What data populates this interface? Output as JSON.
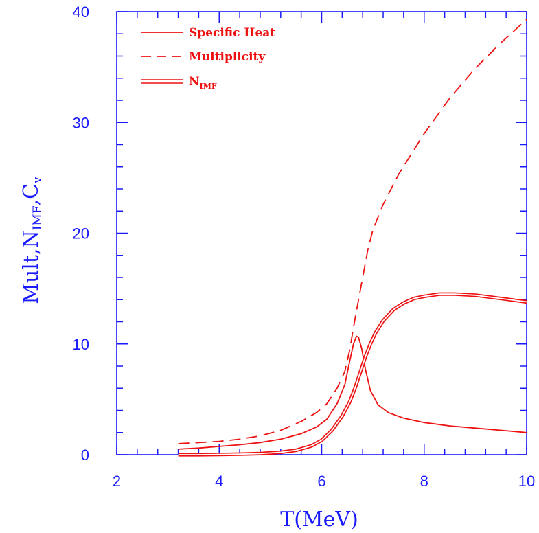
{
  "chart_data": {
    "type": "line",
    "title": "",
    "xlabel": "T(MeV)",
    "ylabel": {
      "base": "Mult,N",
      "sub1": "IMF",
      "mid": ",C",
      "sub2": "v"
    },
    "xlim": [
      2,
      10
    ],
    "ylim": [
      0,
      40
    ],
    "x_ticks": [
      2,
      4,
      6,
      8,
      10
    ],
    "y_ticks": [
      0,
      10,
      20,
      30,
      40
    ],
    "x_minor_step": 0.4,
    "y_minor_step": 2,
    "grid": false,
    "legend_position": "top-left",
    "axis_color": "#1a1aff",
    "series_color": "#ee1111",
    "series": [
      {
        "name": "Specific Heat",
        "style": "solid",
        "x": [
          3.2,
          3.6,
          4.0,
          4.4,
          4.8,
          5.2,
          5.6,
          5.9,
          6.1,
          6.3,
          6.45,
          6.55,
          6.62,
          6.68,
          6.72,
          6.78,
          6.85,
          6.95,
          7.1,
          7.3,
          7.6,
          8.0,
          8.5,
          9.0,
          9.5,
          10.0
        ],
        "y": [
          0.5,
          0.6,
          0.75,
          0.9,
          1.1,
          1.4,
          1.9,
          2.5,
          3.2,
          4.6,
          6.3,
          8.5,
          10.0,
          10.7,
          10.6,
          9.6,
          7.8,
          5.8,
          4.5,
          3.8,
          3.3,
          2.9,
          2.6,
          2.4,
          2.2,
          2.0
        ]
      },
      {
        "name": "Multiplicity",
        "style": "dashed",
        "x": [
          3.2,
          3.6,
          4.0,
          4.4,
          4.8,
          5.2,
          5.6,
          5.9,
          6.1,
          6.3,
          6.45,
          6.55,
          6.62,
          6.7,
          6.8,
          6.9,
          7.0,
          7.2,
          7.5,
          8.0,
          8.5,
          9.0,
          9.5,
          10.0
        ],
        "y": [
          1.0,
          1.1,
          1.2,
          1.4,
          1.7,
          2.2,
          3.0,
          3.8,
          4.6,
          6.0,
          7.5,
          9.5,
          11.5,
          13.5,
          16.0,
          18.5,
          20.3,
          22.6,
          25.3,
          29.0,
          32.2,
          34.9,
          37.2,
          39.3
        ]
      },
      {
        "name": "N",
        "name_sub": "IMF",
        "style": "double",
        "x": [
          3.2,
          3.6,
          4.0,
          4.4,
          4.8,
          5.2,
          5.5,
          5.8,
          6.0,
          6.2,
          6.4,
          6.55,
          6.65,
          6.75,
          6.85,
          6.95,
          7.05,
          7.2,
          7.4,
          7.6,
          7.8,
          8.0,
          8.3,
          8.6,
          9.0,
          9.5,
          10.0
        ],
        "y": [
          0.0,
          0.0,
          0.02,
          0.05,
          0.1,
          0.22,
          0.4,
          0.8,
          1.3,
          2.2,
          3.5,
          4.8,
          6.0,
          7.4,
          8.8,
          10.0,
          11.0,
          12.1,
          13.1,
          13.7,
          14.1,
          14.3,
          14.5,
          14.5,
          14.4,
          14.1,
          13.8
        ]
      }
    ]
  }
}
